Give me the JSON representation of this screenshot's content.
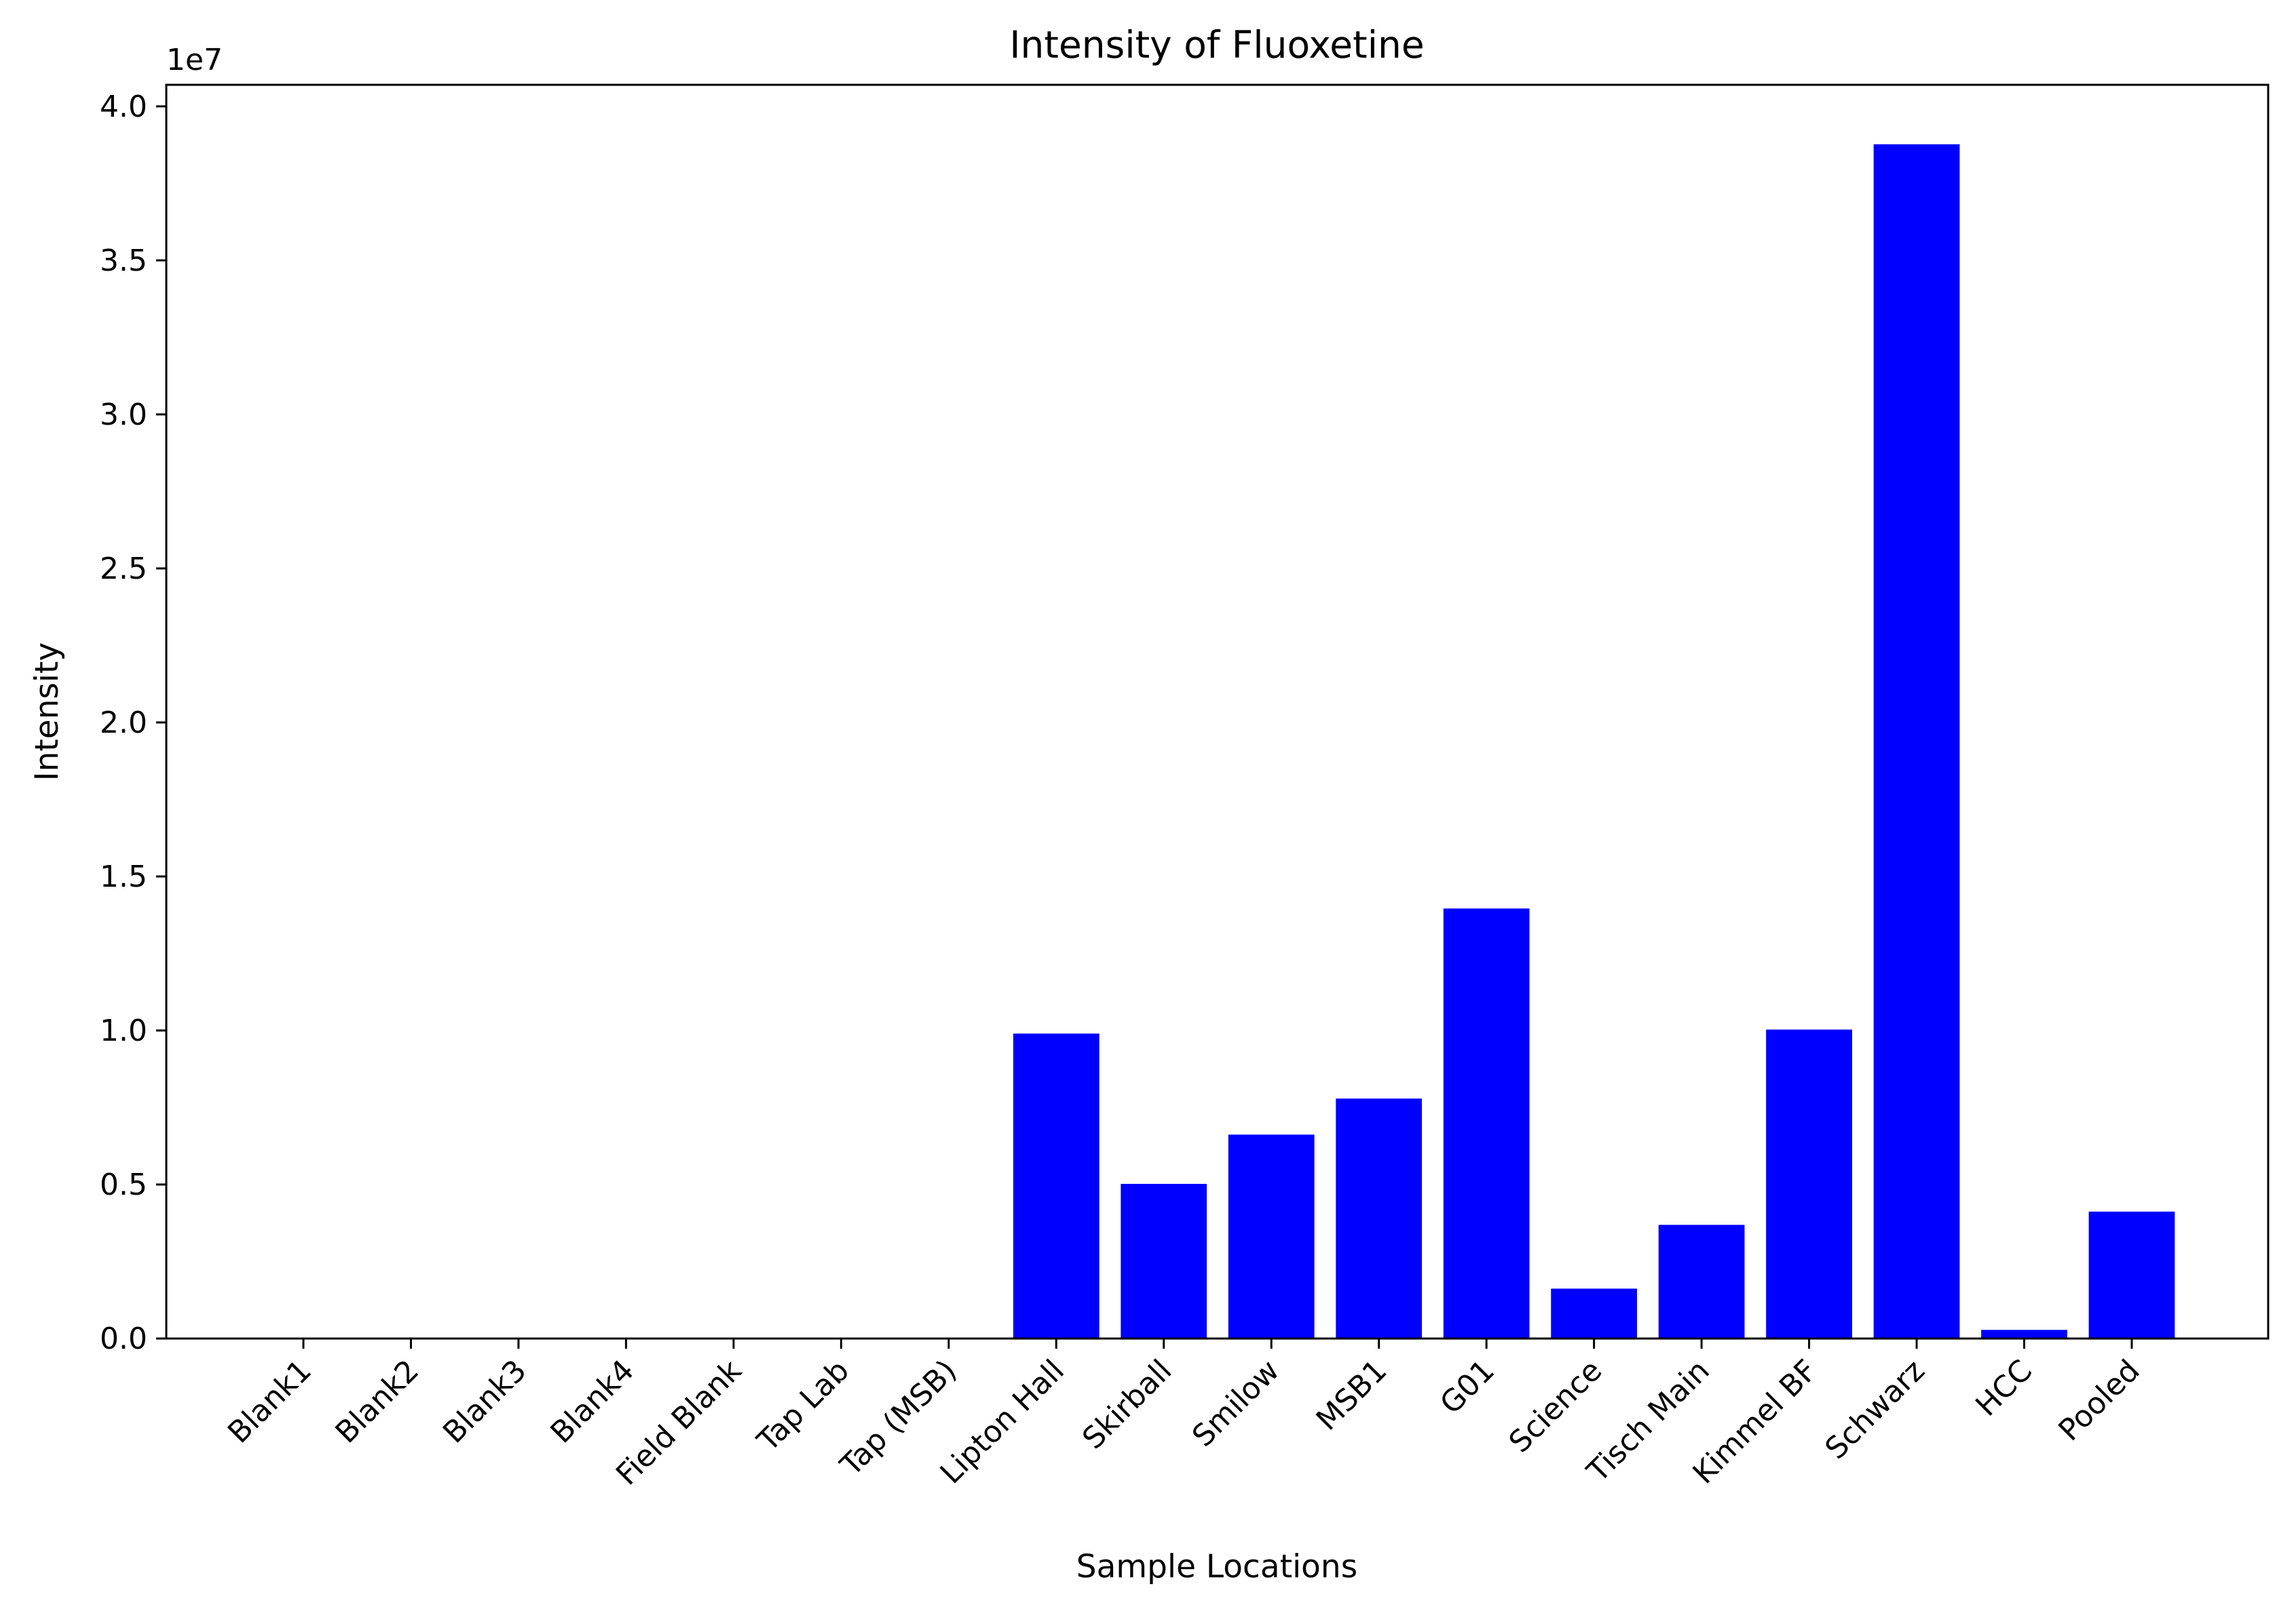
{
  "chart_data": {
    "type": "bar",
    "title": "Intensity of Fluoxetine",
    "xlabel": "Sample Locations",
    "ylabel": "Intensity",
    "y_offset_label": "1e7",
    "y_scale_factor": 10000000,
    "ylim": [
      0,
      40700000
    ],
    "yticks": [
      0,
      5000000,
      10000000,
      15000000,
      20000000,
      25000000,
      30000000,
      35000000,
      40000000
    ],
    "ytick_labels": [
      "0.0",
      "0.5",
      "1.0",
      "1.5",
      "2.0",
      "2.5",
      "3.0",
      "3.5",
      "4.0"
    ],
    "categories": [
      "Blank1",
      "Blank2",
      "Blank3",
      "Blank4",
      "Field Blank",
      "Tap Lab",
      "Tap (MSB)",
      "Lipton Hall",
      "Skirball",
      "Smilow",
      "MSB1",
      "G01",
      "Science",
      "Tisch Main",
      "Kimmel BF",
      "Schwarz",
      "HCC",
      "Pooled"
    ],
    "values": [
      0,
      0,
      0,
      0,
      0,
      0,
      0,
      9900000,
      5020000,
      6620000,
      7790000,
      13960000,
      1620000,
      3690000,
      10030000,
      38770000,
      280000,
      4120000
    ],
    "bar_color": "#0000ff",
    "grid": false,
    "legend": "none"
  }
}
